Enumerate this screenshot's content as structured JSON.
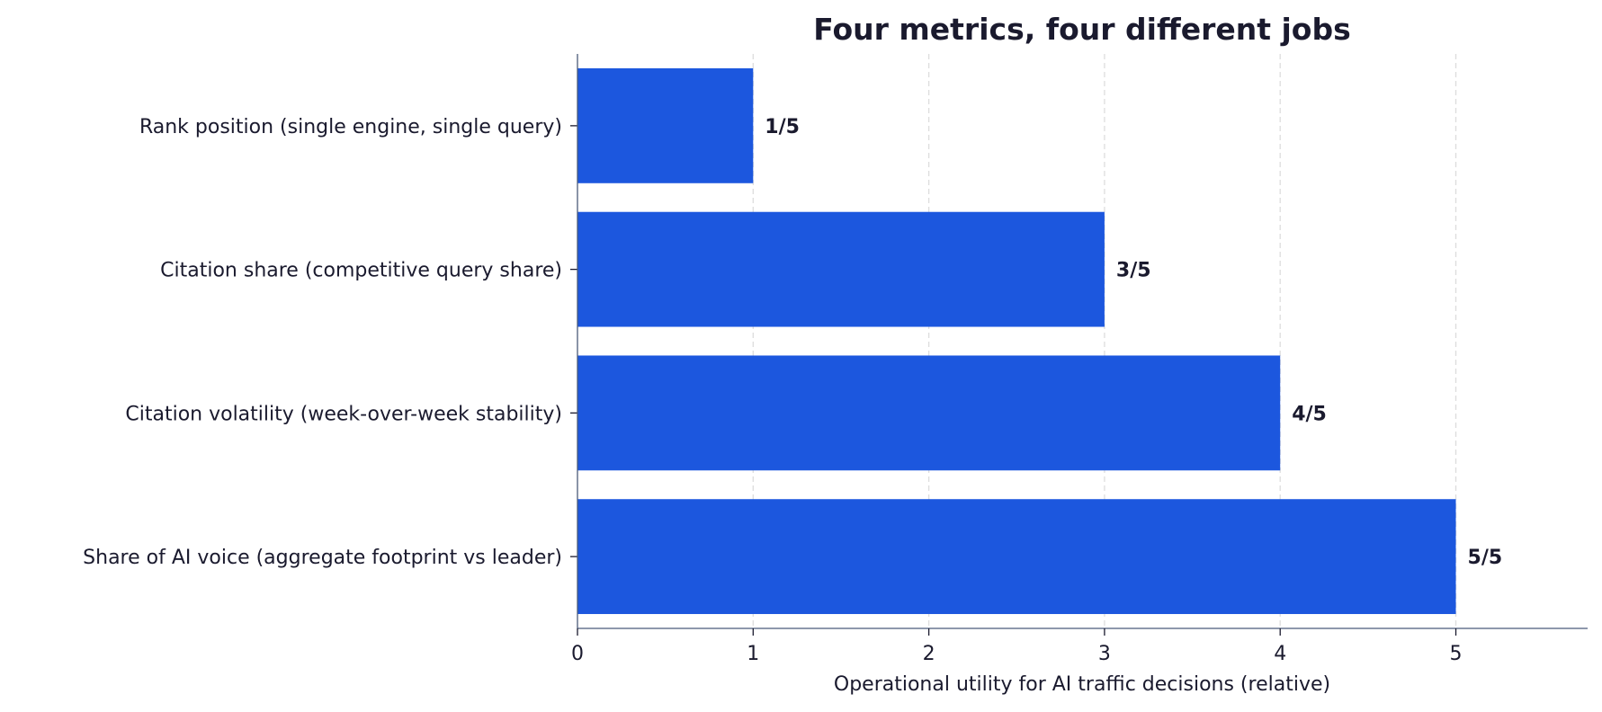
{
  "chart_data": {
    "type": "bar",
    "orientation": "horizontal",
    "title": "Four metrics, four different jobs",
    "xlabel": "Operational utility for AI traffic decisions (relative)",
    "ylabel": "",
    "categories": [
      "Rank position (single engine, single query)",
      "Citation share (competitive query share)",
      "Citation volatility (week-over-week stability)",
      "Share of AI voice (aggregate footprint vs leader)"
    ],
    "values": [
      1,
      3,
      4,
      5
    ],
    "data_labels": [
      "1/5",
      "3/5",
      "4/5",
      "5/5"
    ],
    "xlim": [
      0,
      5.75
    ],
    "xticks": [
      0,
      1,
      2,
      3,
      4,
      5
    ],
    "grid": "x-dashed",
    "bar_color": "#1c57de",
    "text_color": "#1a1a2e",
    "axis_color": "#4a5a7a",
    "grid_color": "#dddddd"
  }
}
